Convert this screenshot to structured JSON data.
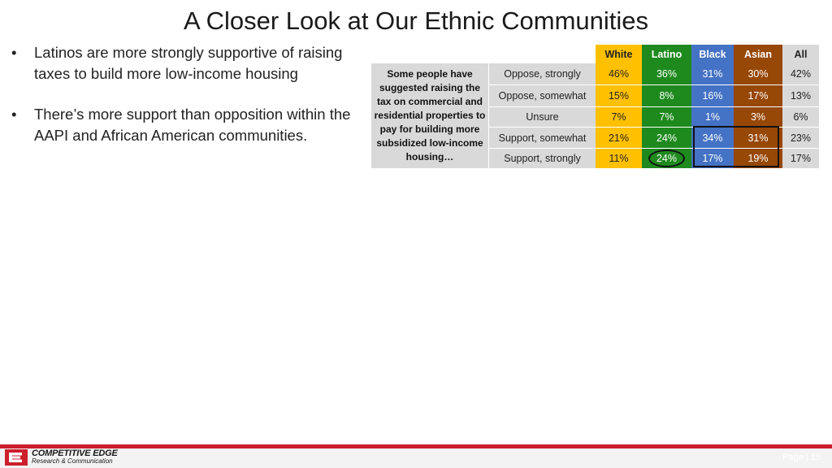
{
  "slide": {
    "title": "A Closer Look at Our Ethnic Communities",
    "bullets": [
      {
        "marker": "•",
        "text": "Latinos are more strongly supportive of raising taxes to build more low-income housing"
      },
      {
        "marker": "•",
        "text": "There’s more support than opposition within the AAPI and African American communities."
      }
    ]
  },
  "table": {
    "question": "Some people have suggested raising the tax on commercial and residential properties to pay for building more subsidized low-income housing…",
    "columns": [
      "White",
      "Latino",
      "Black",
      "Asian",
      "All"
    ],
    "rows": [
      {
        "label": "Oppose, strongly",
        "values": [
          "46%",
          "36%",
          "31%",
          "30%",
          "42%"
        ]
      },
      {
        "label": "Oppose, somewhat",
        "values": [
          "15%",
          "8%",
          "16%",
          "17%",
          "13%"
        ]
      },
      {
        "label": "Unsure",
        "values": [
          "7%",
          "7%",
          "1%",
          "3%",
          "6%"
        ]
      },
      {
        "label": "Support, somewhat",
        "values": [
          "21%",
          "24%",
          "34%",
          "31%",
          "23%"
        ]
      },
      {
        "label": "Support, strongly",
        "values": [
          "11%",
          "24%",
          "17%",
          "19%",
          "17%"
        ]
      }
    ],
    "colors": {
      "white": "#ffc000",
      "latino": "#1e8a1e",
      "black": "#4472c4",
      "asian": "#974706",
      "all": "#d9d9d9"
    }
  },
  "footer": {
    "logo_line1": "COMPETITIVE EDGE",
    "logo_line2": "Research & Communication",
    "page_label": "Page | 15",
    "accent": "#cc1f2b"
  }
}
